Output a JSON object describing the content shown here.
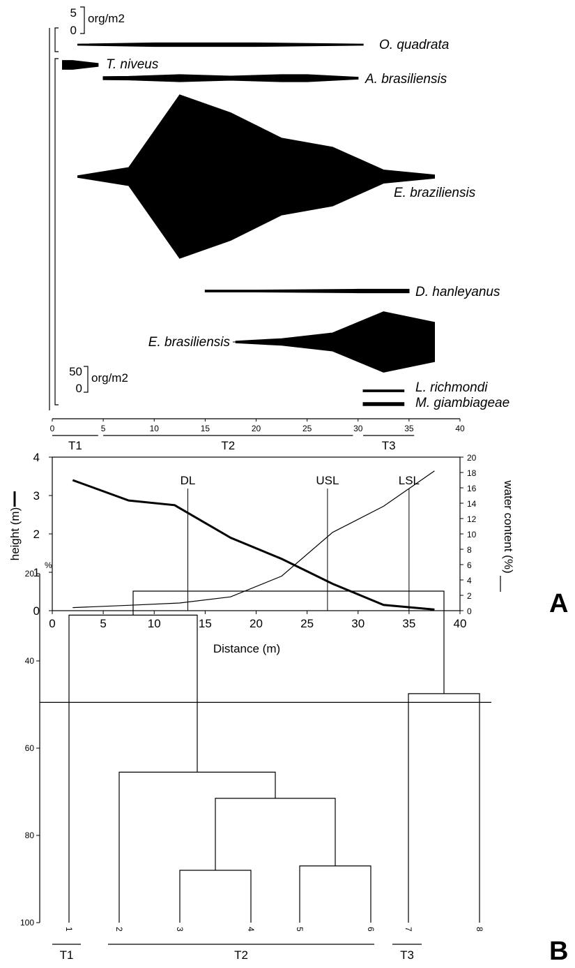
{
  "figure": {
    "panel_a_label": "A",
    "panel_b_label": "B"
  },
  "chart_data": [
    {
      "type": "area",
      "description_kind": "kite diagram of species densities along the beach transect",
      "xlim": [
        0,
        40
      ],
      "x_ticks": [
        "0",
        "5",
        "10",
        "15",
        "20",
        "25",
        "30",
        "35",
        "40"
      ],
      "scale_small": {
        "top": "5",
        "bottom": "0",
        "unit": "org/m2"
      },
      "scale_large": {
        "top": "50",
        "bottom": "0",
        "unit": "org/m2"
      },
      "series": [
        {
          "name": "O. quadrata",
          "x": [
            2.5,
            10,
            20,
            30.5
          ],
          "values": [
            0.2,
            0.6,
            0.6,
            0.2
          ]
        },
        {
          "name": "T. niveus",
          "x": [
            1,
            2,
            4.5
          ],
          "values": [
            1.5,
            1.5,
            0.5
          ]
        },
        {
          "name": "A. brasiliensis",
          "x": [
            5,
            7.5,
            12.5,
            17.5,
            22.5,
            25,
            30
          ],
          "values": [
            0.5,
            0.6,
            1.2,
            0.7,
            1.2,
            1.2,
            0.3
          ]
        },
        {
          "name": "E. braziliensis",
          "x": [
            2.5,
            7.5,
            12.5,
            17.5,
            22.5,
            27.5,
            32.5,
            37.5
          ],
          "values": [
            1,
            11,
            100,
            78,
            47,
            36,
            8,
            2
          ]
        },
        {
          "name": "D. hanleyanus",
          "x": [
            15,
            20,
            30,
            35
          ],
          "values": [
            0.3,
            0.3,
            0.6,
            0.6
          ]
        },
        {
          "name": "E. brasiliensis",
          "x": [
            18,
            22.5,
            27.5,
            32.5,
            37.5
          ],
          "values": [
            1,
            4,
            11,
            37,
            24
          ]
        },
        {
          "name": "L. richmondi",
          "x": [
            30.5,
            34.5
          ],
          "values": [
            0.3,
            0.3
          ]
        },
        {
          "name": "M. giambiageae",
          "x": [
            30.5,
            34.5
          ],
          "values": [
            0.5,
            0.5
          ]
        }
      ],
      "zones": [
        {
          "label": "T1",
          "x_start": 0,
          "x_end": 4.5
        },
        {
          "label": "T2",
          "x_start": 5,
          "x_end": 29.5
        },
        {
          "label": "T3",
          "x_start": 30.5,
          "x_end": 35.5
        }
      ]
    },
    {
      "type": "line",
      "xlabel": "Distance (m)",
      "ylabel": "height (m)",
      "y2label": "water content (%)",
      "xlim": [
        0,
        40
      ],
      "ylim": [
        0,
        4
      ],
      "y2lim": [
        0,
        20
      ],
      "x_ticks": [
        "0",
        "5",
        "10",
        "15",
        "20",
        "25",
        "30",
        "35",
        "40"
      ],
      "y_ticks": [
        "0",
        "1",
        "2",
        "3",
        "4"
      ],
      "y2_ticks": [
        "0",
        "2",
        "4",
        "6",
        "8",
        "10",
        "12",
        "14",
        "16",
        "18",
        "20"
      ],
      "series": [
        {
          "name": "height",
          "axis": "left",
          "x": [
            2,
            7.5,
            12,
            17.5,
            22.5,
            27.5,
            32.5,
            37.5
          ],
          "values": [
            3.4,
            2.87,
            2.75,
            1.9,
            1.35,
            0.7,
            0.15,
            0.03
          ]
        },
        {
          "name": "water content",
          "axis": "right",
          "x": [
            2,
            7.5,
            12.5,
            17.5,
            22.5,
            27.5,
            32.5,
            37.5
          ],
          "values": [
            0.4,
            0.7,
            1.0,
            1.8,
            4.5,
            10.2,
            13.6,
            18.2
          ]
        }
      ],
      "reference_lines": [
        {
          "label": "DL",
          "x": 13.3
        },
        {
          "label": "USL",
          "x": 27
        },
        {
          "label": "LSL",
          "x": 35
        }
      ]
    },
    {
      "type": "dendrogram",
      "axis_unit": "%",
      "ylim": [
        20,
        100
      ],
      "y_ticks": [
        "20",
        "40",
        "60",
        "80",
        "100"
      ],
      "cut_level": 49.5,
      "leaves": [
        "1",
        "2",
        "3",
        "4",
        "5",
        "6",
        "7",
        "8"
      ],
      "merges": [
        {
          "a": "3",
          "b": "4",
          "height": 88
        },
        {
          "a": "5",
          "b": "6",
          "height": 87
        },
        {
          "a": "3-4",
          "b": "5-6",
          "height": 71.5
        },
        {
          "a": "2",
          "b": "3-6",
          "height": 65.5
        },
        {
          "a": "7",
          "b": "8",
          "height": 47.5
        },
        {
          "a": "1",
          "b": "2-6",
          "height": 29.5
        },
        {
          "a": "1-6",
          "b": "7-8",
          "height": 24
        }
      ],
      "groups": [
        {
          "label": "T1",
          "leaves": [
            "1"
          ]
        },
        {
          "label": "T2",
          "leaves": [
            "2",
            "3",
            "4",
            "5",
            "6"
          ]
        },
        {
          "label": "T3",
          "leaves": [
            "7",
            "8"
          ]
        }
      ]
    }
  ]
}
